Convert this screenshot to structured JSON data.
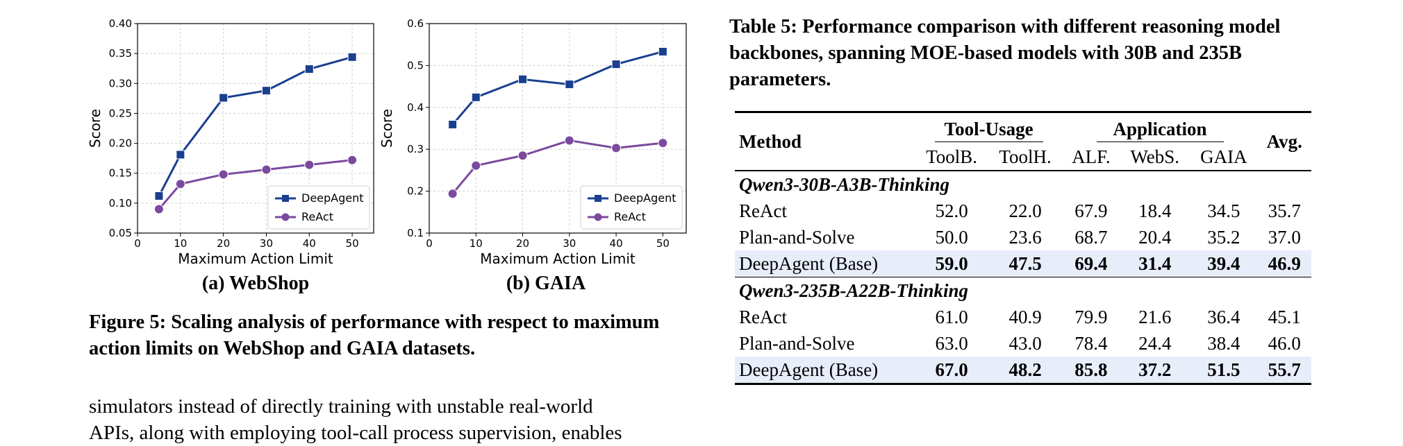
{
  "charts": {
    "webshop": {
      "subcaption": "(a) WebShop",
      "ylabel": "Score",
      "xlabel": "Maximum Action Limit",
      "yticks": [
        "0.05",
        "0.10",
        "0.15",
        "0.20",
        "0.25",
        "0.30",
        "0.35",
        "0.40"
      ],
      "xticks": [
        "0",
        "10",
        "20",
        "30",
        "40",
        "50"
      ],
      "legend": [
        "DeepAgent",
        "ReAct"
      ]
    },
    "gaia": {
      "subcaption": "(b) GAIA",
      "ylabel": "Score",
      "xlabel": "Maximum Action Limit",
      "yticks": [
        "0.1",
        "0.2",
        "0.3",
        "0.4",
        "0.5",
        "0.6"
      ],
      "xticks": [
        "0",
        "10",
        "20",
        "30",
        "40",
        "50"
      ],
      "legend": [
        "DeepAgent",
        "ReAct"
      ]
    }
  },
  "chart_data": [
    {
      "type": "line",
      "title": "",
      "xlabel": "Maximum Action Limit",
      "ylabel": "Score",
      "xlim": [
        0,
        55
      ],
      "ylim": [
        0.05,
        0.4
      ],
      "grid": true,
      "legend_position": "bottom-right",
      "x": [
        5,
        10,
        20,
        30,
        40,
        50
      ],
      "series": [
        {
          "name": "DeepAgent",
          "values": [
            0.112,
            0.181,
            0.276,
            0.288,
            0.324,
            0.344
          ],
          "color": "#1a3f8f",
          "marker": "square"
        },
        {
          "name": "ReAct",
          "values": [
            0.09,
            0.132,
            0.148,
            0.156,
            0.164,
            0.172
          ],
          "color": "#7b4a9e",
          "marker": "circle"
        }
      ]
    },
    {
      "type": "line",
      "title": "",
      "xlabel": "Maximum Action Limit",
      "ylabel": "Score",
      "xlim": [
        0,
        55
      ],
      "ylim": [
        0.1,
        0.6
      ],
      "grid": true,
      "legend_position": "bottom-right",
      "x": [
        5,
        10,
        20,
        30,
        40,
        50
      ],
      "series": [
        {
          "name": "DeepAgent",
          "values": [
            0.359,
            0.424,
            0.467,
            0.455,
            0.503,
            0.533
          ],
          "color": "#1a3f8f",
          "marker": "square"
        },
        {
          "name": "ReAct",
          "values": [
            0.194,
            0.261,
            0.285,
            0.321,
            0.303,
            0.315
          ],
          "color": "#7b4a9e",
          "marker": "circle"
        }
      ]
    }
  ],
  "figure_caption": "Figure 5: Scaling analysis of performance with respect to maximum action limits on WebShop and GAIA datasets.",
  "body_text": {
    "line1": "simulators instead of directly training with unstable real-world",
    "line2": "APIs, along with employing tool-call process supervision, enables"
  },
  "table": {
    "caption": "Table 5: Performance comparison with different reasoning model backbones, spanning MOE-based models with 30B and 235B parameters.",
    "method_header": "Method",
    "group_tool": "Tool-Usage",
    "group_app": "Application",
    "avg_header": "Avg.",
    "subheaders": [
      "ToolB.",
      "ToolH.",
      "ALF.",
      "WebS.",
      "GAIA"
    ],
    "sections": [
      {
        "name": "Qwen3-30B-A3B-Thinking",
        "rows": [
          {
            "method": "ReAct",
            "values": [
              "52.0",
              "22.0",
              "67.9",
              "18.4",
              "34.5",
              "35.7"
            ]
          },
          {
            "method": "Plan-and-Solve",
            "values": [
              "50.0",
              "23.6",
              "68.7",
              "20.4",
              "35.2",
              "37.0"
            ]
          },
          {
            "method": "DeepAgent (Base)",
            "values": [
              "59.0",
              "47.5",
              "69.4",
              "31.4",
              "39.4",
              "46.9"
            ]
          }
        ]
      },
      {
        "name": "Qwen3-235B-A22B-Thinking",
        "rows": [
          {
            "method": "ReAct",
            "values": [
              "61.0",
              "40.9",
              "79.9",
              "21.6",
              "36.4",
              "45.1"
            ]
          },
          {
            "method": "Plan-and-Solve",
            "values": [
              "63.0",
              "43.0",
              "78.4",
              "24.4",
              "38.4",
              "46.0"
            ]
          },
          {
            "method": "DeepAgent (Base)",
            "values": [
              "67.0",
              "48.2",
              "85.8",
              "37.2",
              "51.5",
              "55.7"
            ]
          }
        ]
      }
    ]
  }
}
